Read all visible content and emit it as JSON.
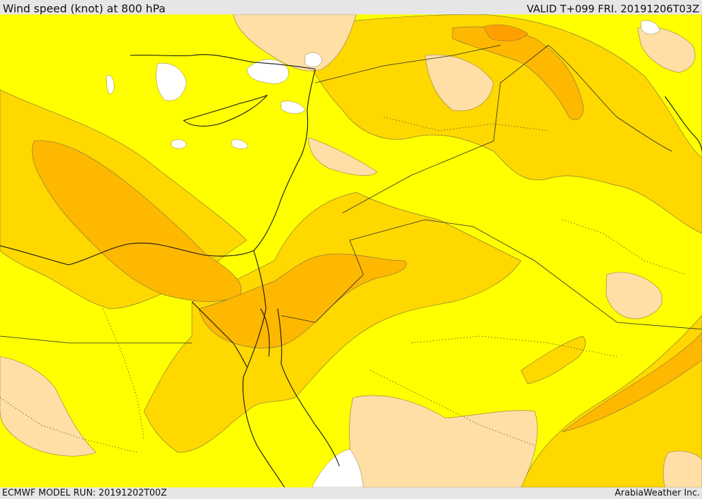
{
  "header": {
    "title": "Wind speed (knot) at 800 hPa",
    "valid": "VALID T+099 FRI. 20191206T03Z"
  },
  "footer": {
    "model_run": "ECMWF MODEL RUN: 20191202T00Z",
    "credit": "ArabiaWeather Inc."
  },
  "map": {
    "field": "wind speed",
    "colors": {
      "calm_white": "#ffffff",
      "low_peach": "#ffdfa6",
      "band_yellow": "#ffff00",
      "band_gold": "#ffd800",
      "band_orange": "#ffb800",
      "band_dark_orange": "#ffa000",
      "coastline": "#111111",
      "contour": "#7a6a50"
    }
  }
}
